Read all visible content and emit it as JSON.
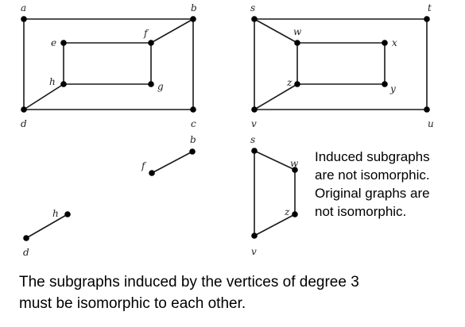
{
  "graphs": [
    {
      "id": "graph-g1",
      "vertices": [
        "a",
        "b",
        "c",
        "d",
        "e",
        "f",
        "g",
        "h"
      ],
      "edges": [
        [
          "a",
          "b"
        ],
        [
          "a",
          "d"
        ],
        [
          "b",
          "c"
        ],
        [
          "c",
          "d"
        ],
        [
          "e",
          "f"
        ],
        [
          "e",
          "h"
        ],
        [
          "f",
          "g"
        ],
        [
          "g",
          "h"
        ],
        [
          "b",
          "f"
        ],
        [
          "d",
          "h"
        ]
      ]
    },
    {
      "id": "graph-g2",
      "vertices": [
        "s",
        "t",
        "u",
        "v",
        "w",
        "x",
        "y",
        "z"
      ],
      "edges": [
        [
          "s",
          "t"
        ],
        [
          "t",
          "u"
        ],
        [
          "u",
          "v"
        ],
        [
          "v",
          "s"
        ],
        [
          "w",
          "x"
        ],
        [
          "x",
          "y"
        ],
        [
          "y",
          "z"
        ],
        [
          "z",
          "w"
        ],
        [
          "s",
          "w"
        ],
        [
          "v",
          "z"
        ]
      ]
    },
    {
      "id": "induced-g1",
      "vertices": [
        "f",
        "b",
        "h",
        "d"
      ],
      "edges": [
        [
          "f",
          "b"
        ],
        [
          "h",
          "d"
        ]
      ]
    },
    {
      "id": "induced-g2",
      "vertices": [
        "s",
        "w",
        "z",
        "v"
      ],
      "edges": [
        [
          "s",
          "w"
        ],
        [
          "w",
          "z"
        ],
        [
          "z",
          "v"
        ],
        [
          "v",
          "s"
        ]
      ]
    }
  ],
  "note": {
    "line1": "Induced subgraphs",
    "line2": "are not isomorphic.",
    "line3": "Original graphs are",
    "line4": "not isomorphic."
  },
  "caption": {
    "line1": "The subgraphs induced by the vertices of degree 3",
    "line2": "must be isomorphic to each other."
  }
}
